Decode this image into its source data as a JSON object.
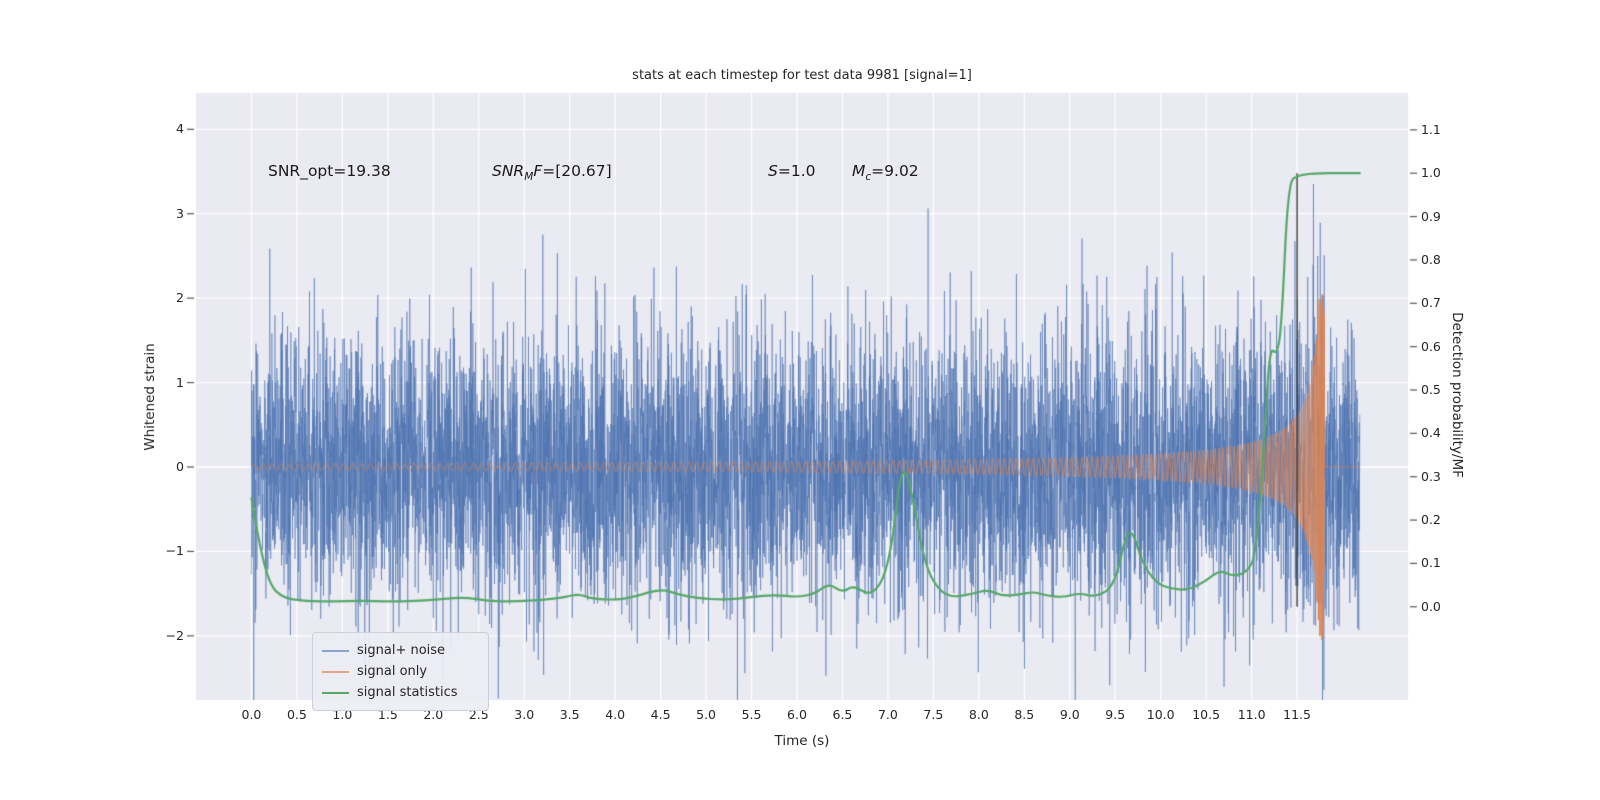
{
  "chart_data": {
    "type": "line",
    "title": "stats at each timestep for test data 9981 [signal=1]",
    "xlabel": "Time (s)",
    "ylabel_left": "Whitened strain",
    "ylabel_right": "Detection probability/MF",
    "annotations": {
      "snr_opt": "SNR_opt=19.38",
      "snr_mf": {
        "prefix": "SNR",
        "sub": "M",
        "mid": "F",
        "value": "=[20.67]"
      },
      "s": {
        "prefix": "S",
        "value": "=1.0"
      },
      "mc": {
        "prefix": "M",
        "sub": "c",
        "value": "=9.02"
      }
    },
    "plot_background": "#eaeaf2",
    "grid_color": "#ffffff",
    "grid": true,
    "xlim": [
      -0.61,
      12.72
    ],
    "ylim_left": [
      -2.76,
      4.43
    ],
    "ylim_right": [
      -0.215,
      1.185
    ],
    "x_ticks": [
      0.0,
      0.5,
      1.0,
      1.5,
      2.0,
      2.5,
      3.0,
      3.5,
      4.0,
      4.5,
      5.0,
      5.5,
      6.0,
      6.5,
      7.0,
      7.5,
      8.0,
      8.5,
      9.0,
      9.5,
      10.0,
      10.5,
      11.0,
      11.5
    ],
    "y_ticks_left": [
      -2,
      -1,
      0,
      1,
      2,
      3,
      4
    ],
    "y_ticks_right": [
      0.0,
      0.1,
      0.2,
      0.3,
      0.4,
      0.5,
      0.6,
      0.7,
      0.8,
      0.9,
      1.0,
      1.1
    ],
    "event_line": {
      "t": 11.5,
      "y_from": 0.0,
      "y_to": 1.0,
      "axis": "right",
      "color": "#3d3d3d"
    },
    "series": [
      {
        "name": "signal+ noise",
        "kind": "noise_plus_signal",
        "axis": "left",
        "color": "#4c72b0",
        "alpha": 0.55,
        "sigma": 0.8,
        "seed": 9981,
        "sample_rate": 600,
        "t_start": 0,
        "t_end": 12.19,
        "line_width": 1
      },
      {
        "name": "signal only",
        "kind": "chirp",
        "axis": "left",
        "color": "#dd8452",
        "alpha": 0.8,
        "t_merger": 11.8,
        "amp_coef": 0.25,
        "amp_exp": -0.75,
        "amp_max": 2.05,
        "freq_coef": 25,
        "freq_exp": -0.375,
        "line_width": 1
      },
      {
        "name": "signal statistics",
        "kind": "keypoints",
        "axis": "right",
        "color": "#55a868",
        "alpha": 1,
        "line_width": 2.2,
        "points": [
          [
            0.0,
            0.25
          ],
          [
            0.08,
            0.15
          ],
          [
            0.2,
            0.05
          ],
          [
            0.35,
            0.02
          ],
          [
            0.6,
            0.013
          ],
          [
            0.9,
            0.012
          ],
          [
            1.2,
            0.014
          ],
          [
            1.5,
            0.012
          ],
          [
            1.8,
            0.013
          ],
          [
            2.1,
            0.018
          ],
          [
            2.35,
            0.022
          ],
          [
            2.6,
            0.013
          ],
          [
            2.9,
            0.012
          ],
          [
            3.2,
            0.016
          ],
          [
            3.45,
            0.022
          ],
          [
            3.6,
            0.03
          ],
          [
            3.75,
            0.018
          ],
          [
            4.0,
            0.016
          ],
          [
            4.2,
            0.022
          ],
          [
            4.5,
            0.042
          ],
          [
            4.7,
            0.028
          ],
          [
            4.9,
            0.02
          ],
          [
            5.2,
            0.016
          ],
          [
            5.5,
            0.022
          ],
          [
            5.75,
            0.028
          ],
          [
            6.0,
            0.022
          ],
          [
            6.2,
            0.03
          ],
          [
            6.35,
            0.055
          ],
          [
            6.5,
            0.032
          ],
          [
            6.62,
            0.05
          ],
          [
            6.8,
            0.025
          ],
          [
            6.95,
            0.06
          ],
          [
            7.05,
            0.15
          ],
          [
            7.15,
            0.33
          ],
          [
            7.25,
            0.28
          ],
          [
            7.4,
            0.1
          ],
          [
            7.55,
            0.04
          ],
          [
            7.7,
            0.022
          ],
          [
            7.9,
            0.028
          ],
          [
            8.1,
            0.04
          ],
          [
            8.25,
            0.025
          ],
          [
            8.45,
            0.028
          ],
          [
            8.6,
            0.035
          ],
          [
            8.75,
            0.025
          ],
          [
            8.95,
            0.022
          ],
          [
            9.1,
            0.032
          ],
          [
            9.3,
            0.022
          ],
          [
            9.5,
            0.05
          ],
          [
            9.65,
            0.2
          ],
          [
            9.8,
            0.1
          ],
          [
            9.95,
            0.055
          ],
          [
            10.1,
            0.042
          ],
          [
            10.3,
            0.038
          ],
          [
            10.5,
            0.06
          ],
          [
            10.65,
            0.085
          ],
          [
            10.8,
            0.07
          ],
          [
            10.95,
            0.08
          ],
          [
            11.05,
            0.12
          ],
          [
            11.15,
            0.42
          ],
          [
            11.2,
            0.6
          ],
          [
            11.28,
            0.58
          ],
          [
            11.33,
            0.65
          ],
          [
            11.4,
            0.97
          ],
          [
            11.5,
            1.0
          ],
          [
            12.19,
            1.0
          ]
        ]
      }
    ],
    "legend": {
      "position": "lower left",
      "entries": [
        {
          "label": "signal+ noise",
          "color": "#8aa4d2"
        },
        {
          "label": "signal only",
          "color": "#e7a386"
        },
        {
          "label": "signal statistics",
          "color": "#55a868"
        }
      ]
    }
  }
}
